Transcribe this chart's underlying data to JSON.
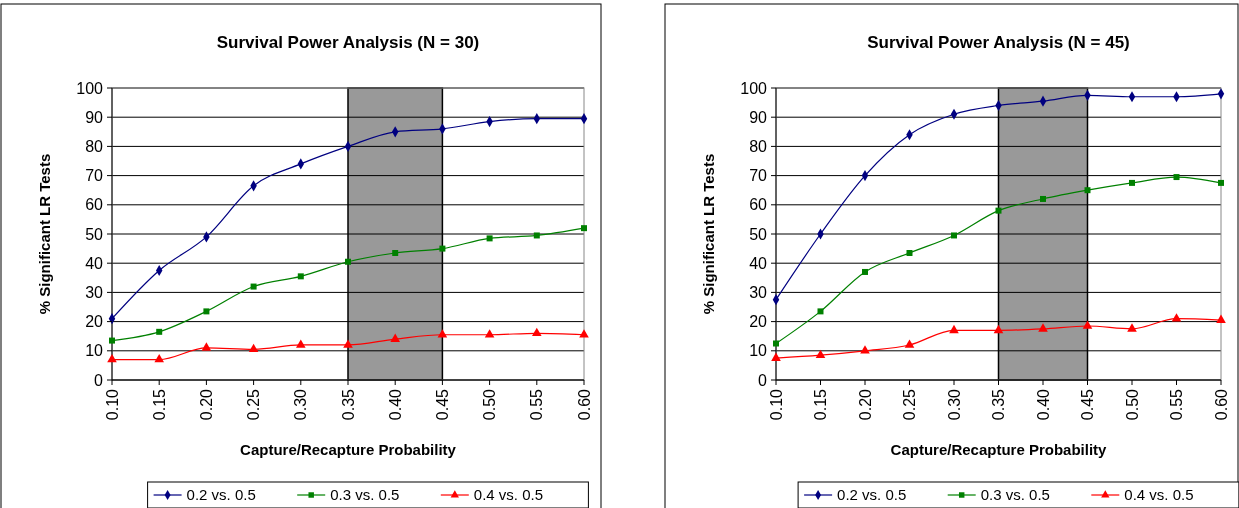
{
  "chart_data": [
    {
      "type": "line",
      "title": "Survival Power Analysis (N = 30)",
      "xlabel": "Capture/Recapture Probability",
      "ylabel": "% Significant LR Tests",
      "x": [
        0.1,
        0.15,
        0.2,
        0.25,
        0.3,
        0.35,
        0.4,
        0.45,
        0.5,
        0.55,
        0.6
      ],
      "series": [
        {
          "name": "0.2 vs. 0.5",
          "color": "#000080",
          "marker": "diamond",
          "values": [
            21,
            37.5,
            49,
            66.5,
            74,
            80,
            85,
            86,
            88.5,
            89.5,
            89.5
          ]
        },
        {
          "name": "0.3 vs. 0.5",
          "color": "#008000",
          "marker": "square",
          "values": [
            13.5,
            16.5,
            23.5,
            32,
            35.5,
            40.5,
            43.5,
            45,
            48.5,
            49.5,
            52
          ]
        },
        {
          "name": "0.4 vs. 0.5",
          "color": "#ff0000",
          "marker": "triangle",
          "values": [
            7,
            7,
            11,
            10.5,
            12,
            12,
            14,
            15.5,
            15.5,
            16,
            15.5
          ]
        }
      ],
      "xlim": [
        0.1,
        0.6
      ],
      "xticks": [
        {
          "value": 0.1,
          "label": "0.10"
        },
        {
          "value": 0.15,
          "label": "0.15"
        },
        {
          "value": 0.2,
          "label": "0.20"
        },
        {
          "value": 0.25,
          "label": "0.25"
        },
        {
          "value": 0.3,
          "label": "0.30"
        },
        {
          "value": 0.35,
          "label": "0.35"
        },
        {
          "value": 0.4,
          "label": "0.40"
        },
        {
          "value": 0.45,
          "label": "0.45"
        },
        {
          "value": 0.5,
          "label": "0.50"
        },
        {
          "value": 0.55,
          "label": "0.55"
        },
        {
          "value": 0.6,
          "label": "0.60"
        }
      ],
      "ylim": [
        0,
        100
      ],
      "yticks": [
        0,
        10,
        20,
        30,
        40,
        50,
        60,
        70,
        80,
        90,
        100
      ],
      "grid": "y",
      "legend": "bottom",
      "bands": [
        {
          "axis": "x",
          "from": 0.35,
          "to": 0.45,
          "color": "#999999"
        }
      ]
    },
    {
      "type": "line",
      "title": "Survival Power Analysis (N = 45)",
      "xlabel": "Capture/Recapture Probability",
      "ylabel": "% Significant LR Tests",
      "x": [
        0.1,
        0.15,
        0.2,
        0.25,
        0.3,
        0.35,
        0.4,
        0.45,
        0.5,
        0.55,
        0.6
      ],
      "series": [
        {
          "name": "0.2 vs. 0.5",
          "color": "#000080",
          "marker": "diamond",
          "values": [
            27.5,
            50,
            70,
            84,
            91,
            94,
            95.5,
            97.5,
            97,
            97,
            98
          ]
        },
        {
          "name": "0.3 vs. 0.5",
          "color": "#008000",
          "marker": "square",
          "values": [
            12.5,
            23.5,
            37,
            43.5,
            49.5,
            58,
            62,
            65,
            67.5,
            69.5,
            67.5
          ]
        },
        {
          "name": "0.4 vs. 0.5",
          "color": "#ff0000",
          "marker": "triangle",
          "values": [
            7.5,
            8.5,
            10,
            12,
            17,
            17,
            17.5,
            18.5,
            17.5,
            21,
            20.5
          ]
        }
      ],
      "xlim": [
        0.1,
        0.6
      ],
      "xticks": [
        {
          "value": 0.1,
          "label": "0.10"
        },
        {
          "value": 0.15,
          "label": "0.15"
        },
        {
          "value": 0.2,
          "label": "0.20"
        },
        {
          "value": 0.25,
          "label": "0.25"
        },
        {
          "value": 0.3,
          "label": "0.30"
        },
        {
          "value": 0.35,
          "label": "0.35"
        },
        {
          "value": 0.4,
          "label": "0.40"
        },
        {
          "value": 0.45,
          "label": "0.45"
        },
        {
          "value": 0.5,
          "label": "0.50"
        },
        {
          "value": 0.55,
          "label": "0.55"
        },
        {
          "value": 0.6,
          "label": "0.60"
        }
      ],
      "ylim": [
        0,
        100
      ],
      "yticks": [
        0,
        10,
        20,
        30,
        40,
        50,
        60,
        70,
        80,
        90,
        100
      ],
      "grid": "y",
      "legend": "bottom",
      "bands": [
        {
          "axis": "x",
          "from": 0.35,
          "to": 0.45,
          "color": "#999999"
        }
      ]
    }
  ]
}
